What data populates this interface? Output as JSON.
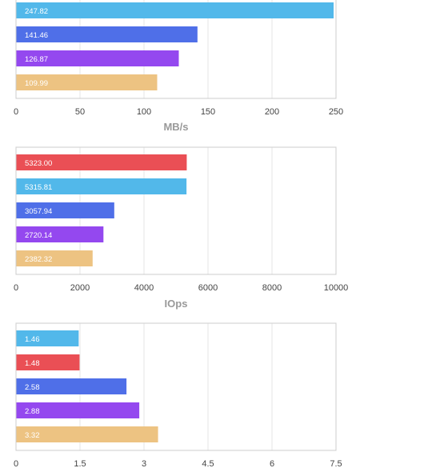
{
  "colors": {
    "red": "#ea4f55",
    "light_blue": "#52b8ea",
    "blue": "#4f6fe8",
    "purple": "#9448ef",
    "tan": "#edc382",
    "grid": "#e6e6e6",
    "frame": "#cccccc",
    "tick_text": "#444444",
    "axis_title": "#999999"
  },
  "chart_data": [
    {
      "type": "bar",
      "orientation": "horizontal",
      "xlabel": "MB/s",
      "xlim": [
        0,
        250
      ],
      "xticks": [
        "0",
        "50",
        "100",
        "150",
        "200",
        "250"
      ],
      "grid": true,
      "bars": [
        {
          "label": "247.82",
          "value": 247.82,
          "color": "light_blue"
        },
        {
          "label": "141.46",
          "value": 141.46,
          "color": "blue"
        },
        {
          "label": "126.87",
          "value": 126.87,
          "color": "purple"
        },
        {
          "label": "109.99",
          "value": 109.99,
          "color": "tan"
        }
      ]
    },
    {
      "type": "bar",
      "orientation": "horizontal",
      "xlabel": "IOps",
      "xlim": [
        0,
        10000
      ],
      "xticks": [
        "0",
        "2000",
        "4000",
        "6000",
        "8000",
        "10000"
      ],
      "grid": true,
      "bars": [
        {
          "label": "5323.00",
          "value": 5323.0,
          "color": "red"
        },
        {
          "label": "5315.81",
          "value": 5315.81,
          "color": "light_blue"
        },
        {
          "label": "3057.94",
          "value": 3057.94,
          "color": "blue"
        },
        {
          "label": "2720.14",
          "value": 2720.14,
          "color": "purple"
        },
        {
          "label": "2382.32",
          "value": 2382.32,
          "color": "tan"
        }
      ]
    },
    {
      "type": "bar",
      "orientation": "horizontal",
      "xlabel": "",
      "xlim": [
        0,
        7.5
      ],
      "xticks": [
        "0",
        "1.5",
        "3",
        "4.5",
        "6",
        "7.5"
      ],
      "grid": true,
      "bars": [
        {
          "label": "1.46",
          "value": 1.46,
          "color": "light_blue"
        },
        {
          "label": "1.48",
          "value": 1.48,
          "color": "red"
        },
        {
          "label": "2.58",
          "value": 2.58,
          "color": "blue"
        },
        {
          "label": "2.88",
          "value": 2.88,
          "color": "purple"
        },
        {
          "label": "3.32",
          "value": 3.32,
          "color": "tan"
        }
      ]
    }
  ]
}
